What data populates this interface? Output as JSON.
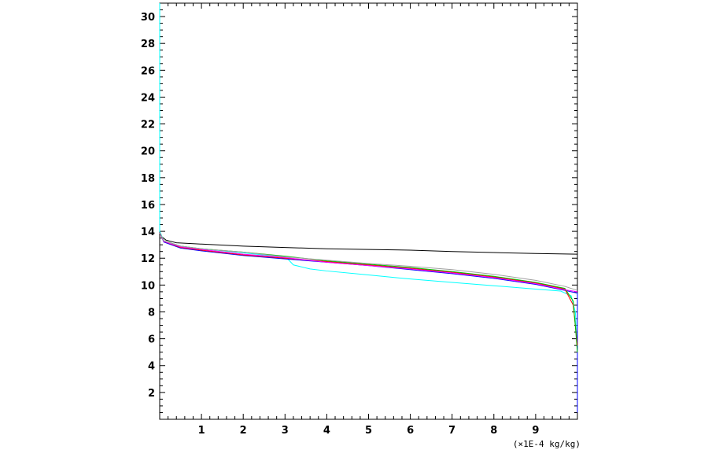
{
  "chart_data": {
    "type": "line",
    "title": "",
    "xlabel": "",
    "ylabel": "",
    "x_unit_label": "(×1E-4 kg/kg)",
    "xlim": [
      0,
      10
    ],
    "ylim": [
      0,
      31
    ],
    "x_ticks": [
      1,
      2,
      3,
      4,
      5,
      6,
      7,
      8,
      9
    ],
    "y_ticks": [
      2,
      4,
      6,
      8,
      10,
      12,
      14,
      16,
      18,
      20,
      22,
      24,
      26,
      28,
      30
    ],
    "x_minor_step": 0.2,
    "y_minor_step": 0.5,
    "grid": false,
    "legend": "none",
    "series": [
      {
        "color": "#000000",
        "points": [
          [
            0.0,
            14.0
          ],
          [
            0.05,
            13.6
          ],
          [
            0.15,
            13.35
          ],
          [
            0.4,
            13.15
          ],
          [
            1,
            13.05
          ],
          [
            2,
            12.9
          ],
          [
            3,
            12.8
          ],
          [
            4,
            12.7
          ],
          [
            5,
            12.65
          ],
          [
            6,
            12.6
          ],
          [
            7,
            12.5
          ],
          [
            8,
            12.42
          ],
          [
            9,
            12.35
          ],
          [
            10,
            12.3
          ]
        ]
      },
      {
        "color": "#00ffff",
        "points": [
          [
            0.0,
            31.0
          ],
          [
            0.0,
            14.0
          ],
          [
            0.1,
            13.3
          ],
          [
            0.5,
            12.9
          ],
          [
            1,
            12.7
          ],
          [
            2,
            12.4
          ],
          [
            2.9,
            12.1
          ],
          [
            3.05,
            12.0
          ],
          [
            3.2,
            11.5
          ],
          [
            3.6,
            11.2
          ],
          [
            4,
            11.05
          ],
          [
            5,
            10.75
          ],
          [
            6,
            10.45
          ],
          [
            7,
            10.2
          ],
          [
            8,
            9.95
          ],
          [
            9,
            9.7
          ],
          [
            9.6,
            9.55
          ],
          [
            9.85,
            9.2
          ],
          [
            9.95,
            8.0
          ],
          [
            10,
            5.0
          ],
          [
            10,
            0.5
          ]
        ]
      },
      {
        "color": "#0000ff",
        "points": [
          [
            0.0,
            13.9
          ],
          [
            0.1,
            13.2
          ],
          [
            0.5,
            12.75
          ],
          [
            1,
            12.55
          ],
          [
            2,
            12.2
          ],
          [
            3,
            11.95
          ],
          [
            4,
            11.7
          ],
          [
            5,
            11.45
          ],
          [
            6,
            11.15
          ],
          [
            7,
            10.85
          ],
          [
            8,
            10.5
          ],
          [
            9,
            10.05
          ],
          [
            9.7,
            9.6
          ],
          [
            10,
            9.4
          ],
          [
            10,
            0.5
          ]
        ]
      },
      {
        "color": "#ff0000",
        "points": [
          [
            0.0,
            13.9
          ],
          [
            0.1,
            13.25
          ],
          [
            0.5,
            12.8
          ],
          [
            1,
            12.6
          ],
          [
            2,
            12.25
          ],
          [
            3,
            12.0
          ],
          [
            4,
            11.75
          ],
          [
            5,
            11.5
          ],
          [
            6,
            11.25
          ],
          [
            7,
            10.95
          ],
          [
            8,
            10.6
          ],
          [
            9,
            10.15
          ],
          [
            9.7,
            9.7
          ],
          [
            9.9,
            8.5
          ],
          [
            10,
            5.5
          ]
        ]
      },
      {
        "color": "#00c000",
        "points": [
          [
            0.0,
            13.9
          ],
          [
            0.1,
            13.3
          ],
          [
            0.5,
            12.9
          ],
          [
            1,
            12.7
          ],
          [
            2,
            12.45
          ],
          [
            3,
            12.15
          ],
          [
            4,
            11.8
          ],
          [
            5,
            11.55
          ],
          [
            6,
            11.3
          ],
          [
            7,
            11.0
          ],
          [
            8,
            10.65
          ],
          [
            9,
            10.2
          ],
          [
            9.7,
            9.75
          ],
          [
            9.9,
            8.8
          ],
          [
            10,
            5.0
          ]
        ]
      },
      {
        "color": "#ff00ff",
        "points": [
          [
            0.0,
            13.9
          ],
          [
            0.1,
            13.25
          ],
          [
            0.5,
            12.85
          ],
          [
            1,
            12.65
          ],
          [
            2,
            12.3
          ],
          [
            3,
            12.05
          ],
          [
            4,
            11.7
          ],
          [
            5,
            11.45
          ],
          [
            6,
            11.2
          ],
          [
            7,
            10.9
          ],
          [
            8,
            10.55
          ],
          [
            9,
            10.1
          ],
          [
            9.7,
            9.65
          ],
          [
            10,
            9.5
          ]
        ]
      },
      {
        "color": "#a0a0a0",
        "points": [
          [
            0.0,
            13.9
          ],
          [
            0.1,
            13.3
          ],
          [
            0.5,
            12.9
          ],
          [
            1,
            12.7
          ],
          [
            2,
            12.45
          ],
          [
            3,
            12.1
          ],
          [
            4,
            11.85
          ],
          [
            5,
            11.6
          ],
          [
            6,
            11.4
          ],
          [
            7,
            11.15
          ],
          [
            8,
            10.8
          ],
          [
            9,
            10.35
          ],
          [
            9.7,
            9.9
          ],
          [
            10,
            9.6
          ]
        ]
      }
    ]
  }
}
